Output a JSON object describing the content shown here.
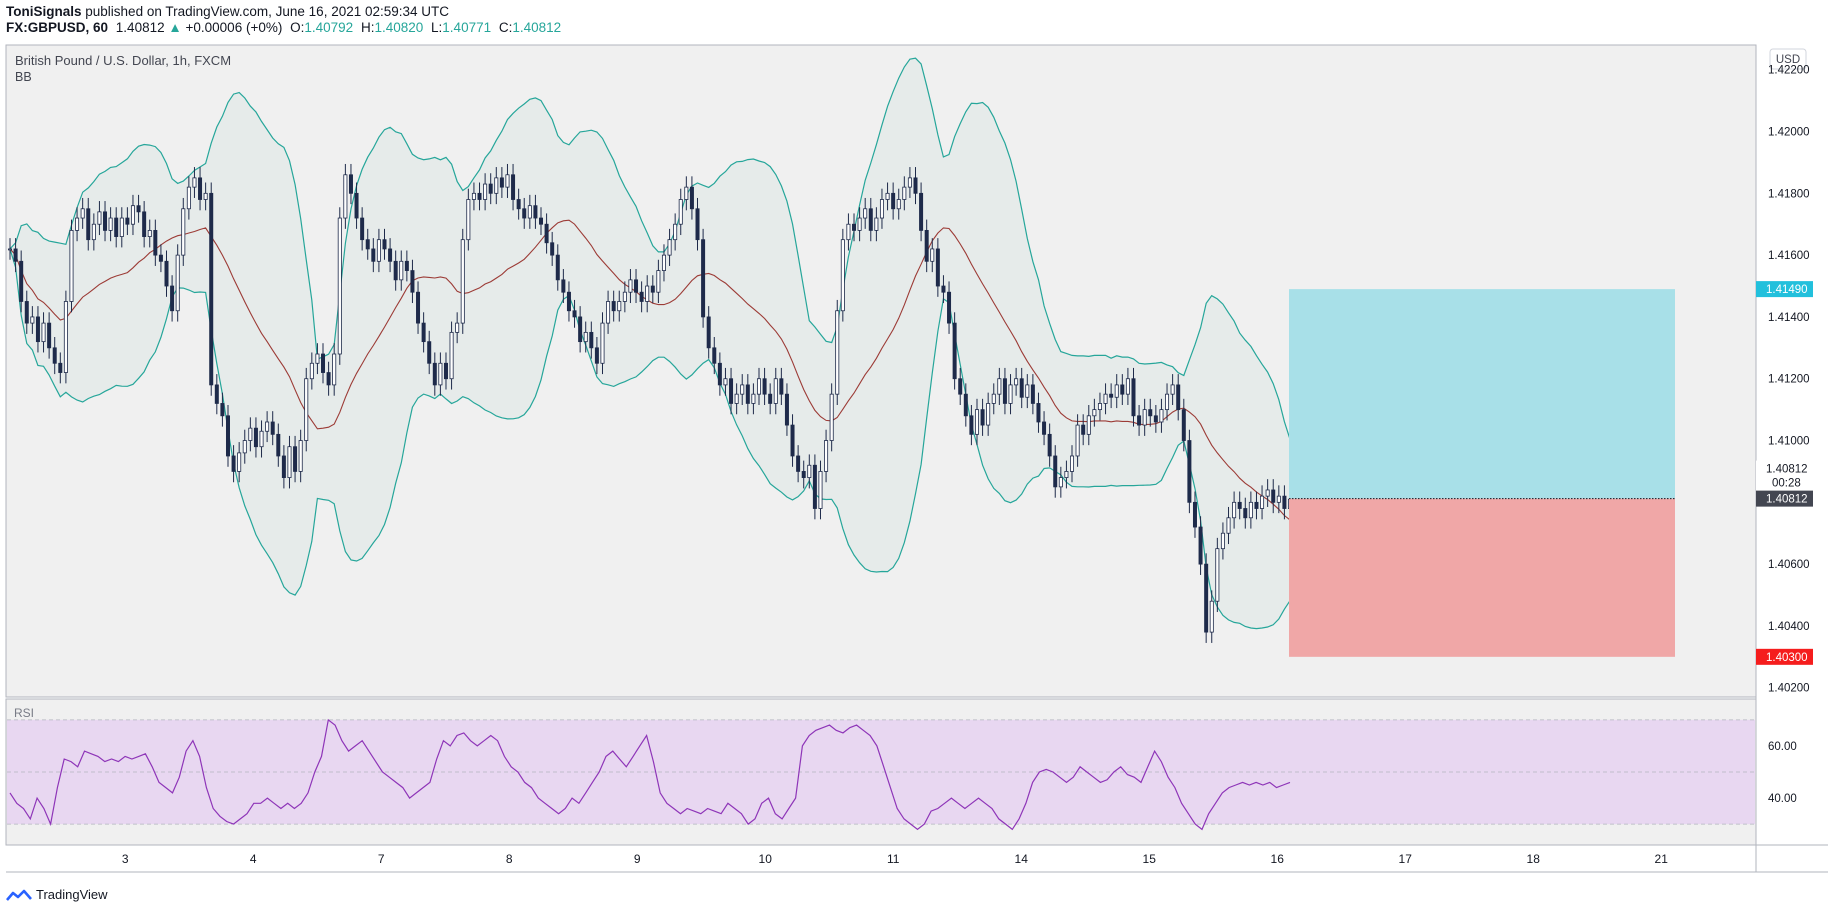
{
  "header": {
    "author": "ToniSignals",
    "published_text": "published on TradingView.com, June 16, 2021 02:59:34 UTC",
    "symbol_line": "FX:GBPUSD, 60",
    "last": "1.40812",
    "change": "+0.00006 (+0%)",
    "o_label": "O:",
    "o": "1.40792",
    "h_label": "H:",
    "h": "1.40820",
    "l_label": "L:",
    "l": "1.40771",
    "c_label": "C:",
    "c": "1.40812"
  },
  "legend": {
    "title": "British Pound / U.S. Dollar, 1h, FXCM",
    "indicator": "BB",
    "currency": "USD",
    "rsi_label": "RSI"
  },
  "footer": {
    "brand": "TradingView"
  },
  "colors": {
    "chart_bg": "#f0f0f0",
    "bb_fill": "#e6ebea",
    "bb_line": "#26a69a",
    "basis": "#9c3b36",
    "candle": "#1e2a4a",
    "rsi_bg": "#e8d7f1",
    "rsi_line": "#8e35b8",
    "target": "#a8e0e8",
    "stop": "#f0a7a7",
    "target_label": "#22c0dc",
    "stop_label": "#f51d1d"
  },
  "chart_data": {
    "type": "candlestick",
    "title": "British Pound / U.S. Dollar, 1h, FXCM",
    "indicators": [
      "BB",
      "RSI"
    ],
    "price_axis": {
      "ylim": [
        1.4017,
        1.4228
      ],
      "ticks": [
        1.422,
        1.42,
        1.418,
        1.416,
        1.414,
        1.412,
        1.41,
        1.408,
        1.406,
        1.404,
        1.402
      ],
      "tick_labels": [
        "1.42200",
        "1.42000",
        "1.41800",
        "1.41600",
        "1.41400",
        "1.41200",
        "1.41000",
        "1.40800",
        "1.40600",
        "1.40400",
        "1.40200"
      ]
    },
    "x_axis": {
      "labels": [
        "3",
        "4",
        "7",
        "8",
        "9",
        "10",
        "11",
        "14",
        "15",
        "16",
        "17",
        "18",
        "21"
      ]
    },
    "closes": [
      1.4162,
      1.4158,
      1.4145,
      1.4138,
      1.414,
      1.4132,
      1.4138,
      1.413,
      1.4125,
      1.4122,
      1.4145,
      1.4168,
      1.4172,
      1.4175,
      1.4165,
      1.417,
      1.4174,
      1.4168,
      1.4172,
      1.4166,
      1.4172,
      1.417,
      1.4176,
      1.4174,
      1.4166,
      1.4168,
      1.416,
      1.4158,
      1.415,
      1.4142,
      1.416,
      1.4175,
      1.4182,
      1.4185,
      1.4178,
      1.418,
      1.4118,
      1.4112,
      1.4108,
      1.4095,
      1.409,
      1.4096,
      1.41,
      1.4104,
      1.4098,
      1.4103,
      1.4106,
      1.4102,
      1.4095,
      1.4088,
      1.4098,
      1.409,
      1.41,
      1.412,
      1.4125,
      1.4128,
      1.4122,
      1.4118,
      1.4128,
      1.4172,
      1.4186,
      1.418,
      1.4172,
      1.4165,
      1.4162,
      1.4158,
      1.4165,
      1.4162,
      1.4158,
      1.4152,
      1.4158,
      1.4155,
      1.4148,
      1.4138,
      1.4132,
      1.4125,
      1.4118,
      1.4125,
      1.412,
      1.4135,
      1.4138,
      1.4165,
      1.4178,
      1.418,
      1.4178,
      1.4183,
      1.418,
      1.4185,
      1.4182,
      1.4186,
      1.4178,
      1.4175,
      1.4172,
      1.4176,
      1.4172,
      1.417,
      1.4164,
      1.416,
      1.4152,
      1.4148,
      1.4142,
      1.414,
      1.4132,
      1.4135,
      1.413,
      1.4125,
      1.4138,
      1.4145,
      1.4142,
      1.4145,
      1.4148,
      1.4152,
      1.4148,
      1.4145,
      1.415,
      1.4148,
      1.4155,
      1.416,
      1.4165,
      1.417,
      1.4178,
      1.4182,
      1.4175,
      1.4165,
      1.414,
      1.413,
      1.4125,
      1.4118,
      1.412,
      1.4112,
      1.4115,
      1.4118,
      1.4112,
      1.4115,
      1.412,
      1.4115,
      1.4112,
      1.412,
      1.4115,
      1.4105,
      1.4095,
      1.409,
      1.4088,
      1.4092,
      1.4078,
      1.409,
      1.41,
      1.4115,
      1.4142,
      1.4165,
      1.417,
      1.4168,
      1.4172,
      1.4175,
      1.4168,
      1.4172,
      1.4178,
      1.418,
      1.4175,
      1.4178,
      1.4182,
      1.4185,
      1.418,
      1.4168,
      1.4158,
      1.4162,
      1.415,
      1.4148,
      1.4138,
      1.412,
      1.4115,
      1.4108,
      1.4102,
      1.411,
      1.4105,
      1.4112,
      1.4115,
      1.412,
      1.4112,
      1.4118,
      1.412,
      1.4114,
      1.4118,
      1.4112,
      1.4106,
      1.4102,
      1.4095,
      1.4085,
      1.4088,
      1.409,
      1.4095,
      1.4105,
      1.4102,
      1.4108,
      1.411,
      1.4112,
      1.4115,
      1.4114,
      1.4118,
      1.4115,
      1.412,
      1.4108,
      1.4105,
      1.411,
      1.4108,
      1.4106,
      1.411,
      1.4115,
      1.4118,
      1.411,
      1.41,
      1.408,
      1.4072,
      1.406,
      1.4038,
      1.4048,
      1.4065,
      1.407,
      1.4075,
      1.408,
      1.4078,
      1.4075,
      1.408,
      1.4078,
      1.4082,
      1.4084,
      1.408,
      1.4082,
      1.4078,
      1.4081
    ],
    "series": [
      {
        "values": [
          1.4162,
          1.4158,
          1.4145,
          1.4138,
          1.414,
          1.4132,
          1.4138,
          1.413,
          1.4125,
          1.4122,
          1.4145,
          1.4168,
          1.4172,
          1.4175,
          1.4165,
          1.417,
          1.4174,
          1.4168,
          1.4172,
          1.4166,
          1.4172,
          1.417,
          1.4176,
          1.4174,
          1.4166,
          1.4168,
          1.416,
          1.4158,
          1.415,
          1.4142,
          1.416,
          1.4175,
          1.4182,
          1.4185,
          1.4178,
          1.418,
          1.4118,
          1.4112,
          1.4108,
          1.4095,
          1.409,
          1.4096,
          1.41,
          1.4104,
          1.4098,
          1.4103,
          1.4106,
          1.4102,
          1.4095,
          1.4088,
          1.4098,
          1.409,
          1.41,
          1.412,
          1.4125,
          1.4128,
          1.4122,
          1.4118,
          1.4128,
          1.4172,
          1.4186,
          1.418,
          1.4172,
          1.4165,
          1.4162,
          1.4158,
          1.4165,
          1.4162,
          1.4158,
          1.4152,
          1.4158,
          1.4155,
          1.4148,
          1.4138,
          1.4132,
          1.4125,
          1.4118,
          1.4125,
          1.412,
          1.4135,
          1.4138,
          1.4165,
          1.4178,
          1.418,
          1.4178,
          1.4183,
          1.418,
          1.4185,
          1.4182,
          1.4186,
          1.4178,
          1.4175,
          1.4172,
          1.4176,
          1.4172,
          1.417,
          1.4164,
          1.416,
          1.4152,
          1.4148,
          1.4142,
          1.414,
          1.4132,
          1.4135,
          1.413,
          1.4125,
          1.4138,
          1.4145,
          1.4142,
          1.4145,
          1.4148,
          1.4152,
          1.4148,
          1.4145,
          1.415,
          1.4148,
          1.4155,
          1.416,
          1.4165,
          1.417,
          1.4178,
          1.4182,
          1.4175,
          1.4165,
          1.414,
          1.413,
          1.4125,
          1.4118,
          1.412,
          1.4112,
          1.4115,
          1.4118,
          1.4112,
          1.4115,
          1.412,
          1.4115,
          1.4112,
          1.412,
          1.4115,
          1.4105,
          1.4095,
          1.409,
          1.4088,
          1.4092,
          1.4078,
          1.409,
          1.41,
          1.4115,
          1.4142,
          1.4165,
          1.417,
          1.4168,
          1.4172,
          1.4175,
          1.4168,
          1.4172,
          1.4178,
          1.418,
          1.4175,
          1.4178,
          1.4182,
          1.4185,
          1.418,
          1.4168,
          1.4158,
          1.4162,
          1.415,
          1.4148,
          1.4138,
          1.412,
          1.4115,
          1.4108,
          1.4102,
          1.411,
          1.4105,
          1.4112,
          1.4115,
          1.412,
          1.4112,
          1.4118,
          1.412,
          1.4114,
          1.4118,
          1.4112,
          1.4106,
          1.4102,
          1.4095,
          1.4085,
          1.4088,
          1.409,
          1.4095,
          1.4105,
          1.4102,
          1.4108,
          1.411,
          1.4112,
          1.4115,
          1.4114,
          1.4118,
          1.4115,
          1.412,
          1.4108,
          1.4105,
          1.411,
          1.4108,
          1.4106,
          1.411,
          1.4115,
          1.4118,
          1.411,
          1.41,
          1.408,
          1.4072,
          1.406,
          1.4038,
          1.4048,
          1.4065,
          1.407,
          1.4075,
          1.408,
          1.4078,
          1.4075,
          1.408,
          1.4078,
          1.4082,
          1.4084,
          1.408,
          1.4082,
          1.4078,
          1.4081
        ]
      }
    ],
    "position": {
      "entry": 1.40812,
      "target": 1.4149,
      "stop": 1.403,
      "target_label": "1.41490",
      "stop_label": "1.40300",
      "last_label": "1.40812",
      "last_top": "1.40812",
      "countdown": "00:28"
    },
    "rsi": {
      "ylim": [
        22,
        78
      ],
      "ticks": [
        60,
        40
      ],
      "tick_labels": [
        "60.00",
        "40.00"
      ],
      "band": [
        30,
        70
      ],
      "values": [
        42,
        38,
        36,
        32,
        40,
        36,
        30,
        44,
        55,
        54,
        52,
        58,
        57,
        56,
        54,
        55,
        54,
        56,
        55,
        56,
        57,
        52,
        46,
        44,
        42,
        48,
        58,
        62,
        56,
        44,
        36,
        33,
        31,
        30,
        32,
        34,
        38,
        38,
        40,
        38,
        36,
        38,
        36,
        38,
        42,
        50,
        56,
        70,
        68,
        62,
        58,
        60,
        62,
        58,
        54,
        50,
        48,
        46,
        44,
        40,
        42,
        44,
        46,
        55,
        62,
        60,
        64,
        65,
        62,
        60,
        62,
        64,
        62,
        56,
        52,
        50,
        46,
        44,
        40,
        38,
        36,
        34,
        36,
        40,
        38,
        42,
        46,
        50,
        56,
        58,
        55,
        52,
        56,
        60,
        64,
        54,
        42,
        38,
        36,
        34,
        36,
        35,
        34,
        36,
        35,
        34,
        38,
        36,
        34,
        30,
        32,
        38,
        40,
        34,
        32,
        36,
        40,
        60,
        64,
        66,
        67,
        68,
        66,
        65,
        67,
        68,
        66,
        64,
        60,
        52,
        44,
        36,
        32,
        30,
        28,
        30,
        35,
        36,
        38,
        40,
        38,
        36,
        38,
        40,
        38,
        36,
        32,
        30,
        28,
        32,
        38,
        46,
        50,
        51,
        50,
        48,
        46,
        48,
        52,
        50,
        48,
        46,
        47,
        50,
        52,
        49,
        48,
        46,
        52,
        58,
        54,
        48,
        44,
        38,
        34,
        30,
        28,
        34,
        38,
        42,
        44,
        45,
        46,
        45,
        46,
        45,
        46,
        44,
        45,
        46
      ]
    }
  }
}
